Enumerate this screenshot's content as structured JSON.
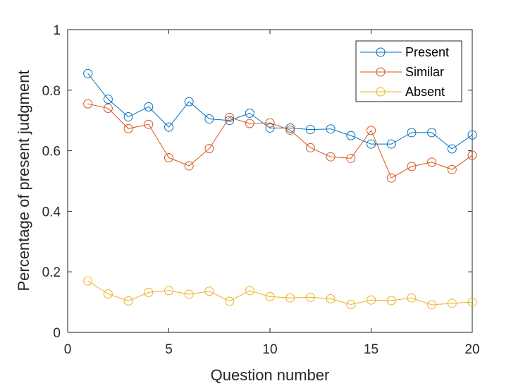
{
  "chart_data": {
    "type": "line",
    "title": "",
    "xlabel": "Question number",
    "ylabel": "Percentage of present judgment",
    "xlim": [
      0,
      20
    ],
    "ylim": [
      0,
      1
    ],
    "xticks": [
      0,
      5,
      10,
      15,
      20
    ],
    "yticks": [
      0,
      0.2,
      0.4,
      0.6,
      0.8,
      1
    ],
    "xtick_labels": [
      "0",
      "5",
      "10",
      "15",
      "20"
    ],
    "ytick_labels": [
      "0",
      "0.2",
      "0.4",
      "0.6",
      "0.8",
      "1"
    ],
    "grid": false,
    "legend_position": "top-right",
    "x": [
      1,
      2,
      3,
      4,
      5,
      6,
      7,
      8,
      9,
      10,
      11,
      12,
      13,
      14,
      15,
      16,
      17,
      18,
      19,
      20
    ],
    "series": [
      {
        "name": "Present",
        "color": "#0072BD",
        "marker": "circle",
        "values": [
          0.855,
          0.77,
          0.712,
          0.745,
          0.678,
          0.762,
          0.705,
          0.7,
          0.724,
          0.675,
          0.675,
          0.67,
          0.672,
          0.65,
          0.622,
          0.622,
          0.66,
          0.66,
          0.606,
          0.652
        ]
      },
      {
        "name": "Similar",
        "color": "#D95319",
        "marker": "circle",
        "values": [
          0.755,
          0.74,
          0.673,
          0.687,
          0.577,
          0.55,
          0.607,
          0.71,
          0.69,
          0.692,
          0.668,
          0.61,
          0.58,
          0.575,
          0.667,
          0.51,
          0.548,
          0.562,
          0.538,
          0.585
        ]
      },
      {
        "name": "Absent",
        "color": "#EDB120",
        "marker": "circle",
        "values": [
          0.17,
          0.127,
          0.104,
          0.132,
          0.138,
          0.126,
          0.136,
          0.103,
          0.138,
          0.118,
          0.114,
          0.116,
          0.111,
          0.092,
          0.107,
          0.105,
          0.114,
          0.091,
          0.096,
          0.1
        ]
      }
    ]
  }
}
